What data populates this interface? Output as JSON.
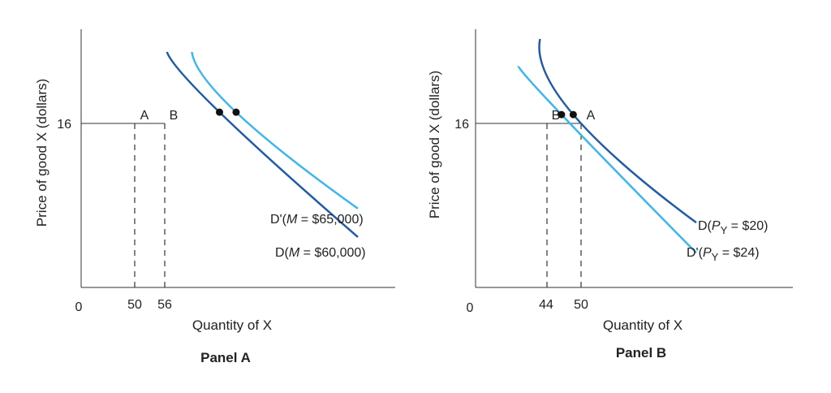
{
  "chart_data": [
    {
      "type": "line",
      "title": "Panel A",
      "xlabel": "Quantity of X",
      "ylabel": "Price of good X (dollars)",
      "origin_label": "0",
      "x_ticks": [
        "50",
        "56"
      ],
      "y_ticks": [
        "16"
      ],
      "series": [
        {
          "name": "D'(M = $65,000)",
          "name_prefix": "D'(",
          "name_var": "M",
          "name_suffix": " = $65,000)",
          "color": "#3cb6ee",
          "x": [
            40,
            56,
            100
          ],
          "y": [
            21.5,
            16,
            7.2
          ]
        },
        {
          "name": "D(M = $60,000)",
          "name_prefix": "D(",
          "name_var": "M",
          "name_suffix": " = $60,000)",
          "color": "#1f5ba8",
          "x": [
            31,
            50,
            100
          ],
          "y": [
            21.5,
            16,
            4.6
          ]
        }
      ],
      "points": [
        {
          "label": "A",
          "x": 50,
          "y": 16
        },
        {
          "label": "B",
          "x": 56,
          "y": 16
        }
      ]
    },
    {
      "type": "line",
      "title": "Panel B",
      "xlabel": "Quantity of X",
      "ylabel": "Price of good X (dollars)",
      "origin_label": "0",
      "x_ticks": [
        "44",
        "50"
      ],
      "y_ticks": [
        "16"
      ],
      "series": [
        {
          "name": "D(PY = $20)",
          "name_prefix": "D(",
          "name_var": "P",
          "name_sub": "Y",
          "name_suffix": " = $20)",
          "color": "#1f5ba8",
          "x": [
            33,
            50,
            113
          ],
          "y": [
            23,
            16,
            6
          ]
        },
        {
          "name": "D'(PY = $24)",
          "name_prefix": "D'(",
          "name_var": "P",
          "name_sub": "Y",
          "name_suffix": " = $24)",
          "color": "#3cb6ee",
          "x": [
            22,
            44,
            113
          ],
          "y": [
            20.5,
            16,
            3.2
          ]
        }
      ],
      "points": [
        {
          "label": "B",
          "x": 44,
          "y": 16
        },
        {
          "label": "A",
          "x": 50,
          "y": 16
        }
      ]
    }
  ]
}
